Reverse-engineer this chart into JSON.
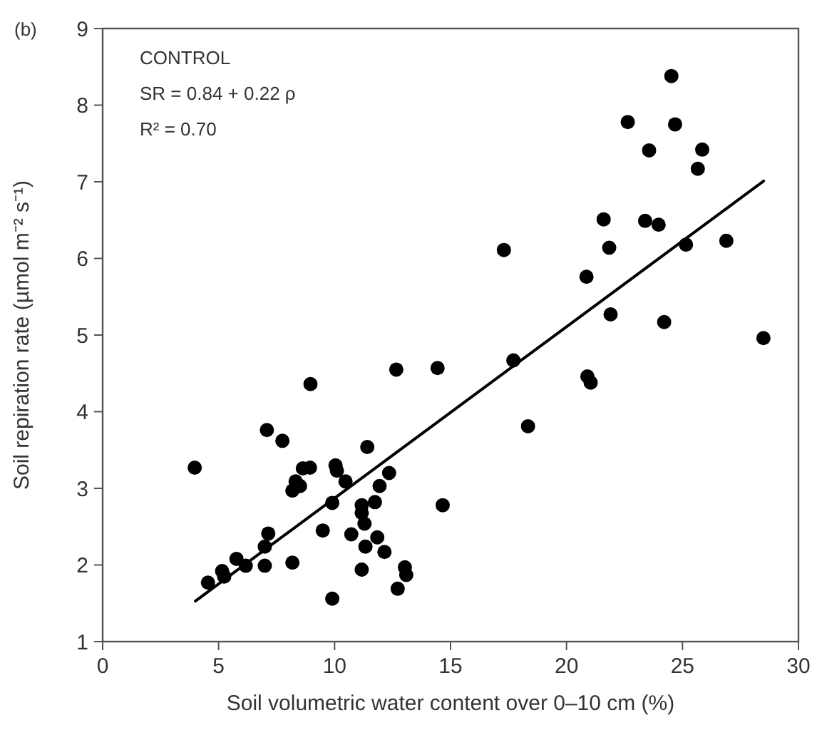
{
  "chart_data": {
    "type": "scatter",
    "title": "(b)",
    "xlabel": "Soil volumetric water content over 0–10 cm (%)",
    "ylabel": "Soil repiration rate (µmol m⁻² s⁻¹)",
    "annotations": [
      "CONTROL",
      "SR = 0.84 + 0.22 ρ",
      "R² = 0.70"
    ],
    "xlim": [
      0,
      30
    ],
    "xticks": [
      0,
      5,
      10,
      15,
      20,
      25,
      30
    ],
    "ylim": [
      1,
      9
    ],
    "yticks": [
      1,
      2,
      3,
      4,
      5,
      6,
      7,
      8,
      9
    ],
    "grid": false,
    "marker": "circle",
    "x": [
      3.97,
      4.54,
      5.15,
      5.24,
      5.77,
      6.17,
      6.99,
      6.99,
      7.14,
      7.08,
      7.75,
      8.18,
      8.18,
      8.32,
      8.51,
      8.63,
      8.94,
      8.96,
      9.49,
      9.9,
      9.9,
      10.04,
      10.1,
      10.47,
      10.72,
      11.17,
      11.17,
      11.29,
      11.33,
      11.17,
      11.41,
      11.74,
      11.94,
      11.84,
      12.15,
      12.35,
      12.66,
      12.72,
      13.03,
      13.09,
      14.44,
      14.66,
      18.34,
      17.71,
      17.3,
      20.86,
      20.9,
      21.04,
      21.6,
      21.84,
      21.9,
      22.64,
      23.39,
      23.56,
      23.97,
      24.21,
      24.52,
      24.68,
      25.15,
      25.66,
      25.85,
      26.89,
      28.49
    ],
    "series": [
      {
        "color": "#000000",
        "values": [
          3.27,
          1.77,
          1.92,
          1.85,
          2.08,
          1.99,
          1.99,
          2.24,
          2.41,
          3.76,
          3.62,
          2.03,
          2.97,
          3.09,
          3.03,
          3.26,
          3.27,
          4.36,
          2.45,
          2.81,
          1.56,
          3.3,
          3.23,
          3.09,
          2.4,
          2.78,
          2.68,
          2.54,
          2.24,
          1.94,
          3.54,
          2.82,
          3.03,
          2.36,
          2.17,
          3.2,
          4.55,
          1.69,
          1.97,
          1.87,
          4.57,
          2.78,
          3.81,
          4.67,
          6.11,
          5.76,
          4.46,
          4.38,
          6.51,
          6.14,
          5.27,
          7.78,
          6.49,
          7.41,
          6.44,
          5.17,
          8.38,
          7.75,
          6.18,
          7.17,
          7.42,
          6.23,
          4.96
        ]
      },
      {
        "type": "line",
        "color": "#000000",
        "x": [
          4,
          28.5
        ],
        "values": [
          1.53,
          7.01
        ],
        "marker": "none",
        "line_style": "solid"
      }
    ]
  }
}
